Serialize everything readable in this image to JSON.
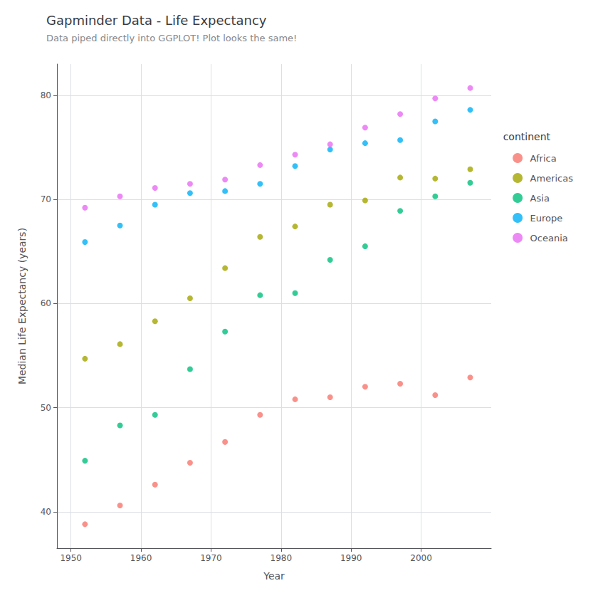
{
  "chart_data": {
    "type": "scatter",
    "title": "Gapminder Data - Life Expectancy",
    "subtitle": "Data piped directly into GGPLOT! Plot looks the same!",
    "xlabel": "Year",
    "ylabel": "Median Life Expectancy (years)",
    "legend_title": "continent",
    "legend": "right",
    "grid": true,
    "x": [
      1952,
      1957,
      1962,
      1967,
      1972,
      1977,
      1982,
      1987,
      1992,
      1997,
      2002,
      2007
    ],
    "series": [
      {
        "name": "Africa",
        "color": "#F8766D",
        "values": [
          38.8,
          40.6,
          42.6,
          44.7,
          46.7,
          49.3,
          50.8,
          51.0,
          52.0,
          52.3,
          51.2,
          52.9
        ]
      },
      {
        "name": "Americas",
        "color": "#A3A500",
        "values": [
          54.7,
          56.1,
          58.3,
          60.5,
          63.4,
          66.4,
          67.4,
          69.5,
          69.9,
          72.1,
          72.0,
          72.9
        ]
      },
      {
        "name": "Asia",
        "color": "#00BF7D",
        "values": [
          44.9,
          48.3,
          49.3,
          53.7,
          57.3,
          60.8,
          61.0,
          64.2,
          65.5,
          68.9,
          70.3,
          71.6
        ]
      },
      {
        "name": "Europe",
        "color": "#00B0F6",
        "values": [
          65.9,
          67.5,
          69.5,
          70.6,
          70.8,
          71.5,
          73.2,
          74.8,
          75.4,
          75.7,
          77.5,
          78.6
        ]
      },
      {
        "name": "Oceania",
        "color": "#E76BF3",
        "values": [
          69.2,
          70.3,
          71.1,
          71.5,
          71.9,
          73.3,
          74.3,
          75.3,
          76.9,
          78.2,
          79.7,
          80.7
        ]
      }
    ],
    "xlim": [
      1948,
      2010
    ],
    "ylim": [
      36.5,
      83
    ],
    "xticks": [
      1950,
      1960,
      1970,
      1980,
      1990,
      2000
    ],
    "yticks": [
      40,
      50,
      60,
      70,
      80
    ]
  }
}
